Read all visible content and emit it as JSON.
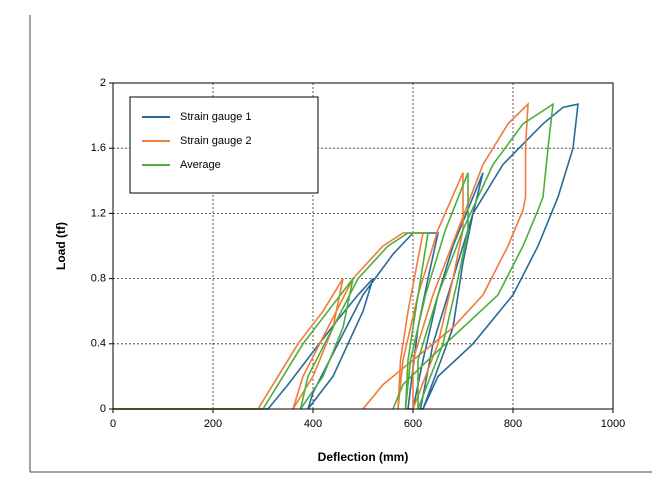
{
  "chart_data": {
    "type": "line",
    "xlabel": "Deflection (mm)",
    "ylabel": "Load (tf)",
    "xlim": [
      0,
      1000
    ],
    "xticks": [
      0,
      200,
      400,
      600,
      800,
      1000
    ],
    "ylim": [
      0,
      2
    ],
    "yticks": [
      0,
      0.4,
      0.8,
      1.2,
      1.6,
      2
    ],
    "grid": true,
    "legend": "upper left",
    "series": [
      {
        "name": "Strain gauge 1",
        "color": "#2a6a96",
        "x": [
          0,
          310,
          350,
          400,
          450,
          490,
          520,
          500,
          470,
          440,
          390,
          400,
          450,
          500,
          560,
          600,
          650,
          630,
          610,
          590,
          600,
          620,
          650,
          680,
          720,
          740,
          720,
          700,
          680,
          620,
          615,
          640,
          680,
          720,
          780,
          860,
          900,
          930,
          920,
          890,
          850,
          800,
          720,
          650,
          620
        ],
        "values": [
          0,
          0,
          0.15,
          0.35,
          0.55,
          0.7,
          0.8,
          0.6,
          0.4,
          0.2,
          0,
          0.1,
          0.4,
          0.7,
          0.95,
          1.08,
          1.08,
          0.8,
          0.5,
          0,
          0,
          0.3,
          0.7,
          1.0,
          1.3,
          1.45,
          1.2,
          0.9,
          0.5,
          0,
          0,
          0.4,
          0.8,
          1.2,
          1.5,
          1.75,
          1.85,
          1.87,
          1.6,
          1.3,
          1.0,
          0.7,
          0.4,
          0.2,
          0
        ]
      },
      {
        "name": "Strain gauge 2",
        "color": "#f07b3a",
        "x": [
          0,
          290,
          320,
          370,
          420,
          460,
          440,
          400,
          360,
          380,
          430,
          480,
          540,
          580,
          620,
          590,
          575,
          570,
          580,
          610,
          650,
          700,
          700,
          680,
          650,
          600,
          600,
          640,
          690,
          740,
          790,
          830,
          825,
          825,
          820,
          790,
          740,
          680,
          600,
          540,
          500
        ],
        "values": [
          0,
          0,
          0.15,
          0.4,
          0.6,
          0.8,
          0.5,
          0.2,
          0,
          0.2,
          0.5,
          0.8,
          1.0,
          1.08,
          1.08,
          0.6,
          0.3,
          0,
          0.3,
          0.7,
          1.1,
          1.45,
          1.1,
          0.8,
          0.4,
          0,
          0.3,
          0.7,
          1.1,
          1.5,
          1.75,
          1.87,
          1.6,
          1.3,
          1.22,
          1.0,
          0.7,
          0.5,
          0.3,
          0.15,
          0
        ]
      },
      {
        "name": "Average",
        "color": "#4caf3a",
        "x": [
          0,
          300,
          330,
          380,
          430,
          480,
          460,
          420,
          375,
          390,
          440,
          490,
          550,
          590,
          630,
          605,
          590,
          585,
          595,
          625,
          665,
          710,
          710,
          690,
          660,
          610,
          610,
          650,
          700,
          760,
          820,
          880,
          870,
          860,
          850,
          820,
          770,
          700,
          630,
          580,
          560
        ],
        "values": [
          0,
          0,
          0.15,
          0.4,
          0.6,
          0.8,
          0.5,
          0.2,
          0,
          0.2,
          0.5,
          0.8,
          1.0,
          1.08,
          1.08,
          0.6,
          0.3,
          0,
          0.3,
          0.7,
          1.1,
          1.45,
          1.1,
          0.8,
          0.4,
          0,
          0.3,
          0.7,
          1.1,
          1.5,
          1.75,
          1.87,
          1.6,
          1.3,
          1.22,
          1.0,
          0.7,
          0.5,
          0.3,
          0.15,
          0
        ]
      }
    ]
  }
}
